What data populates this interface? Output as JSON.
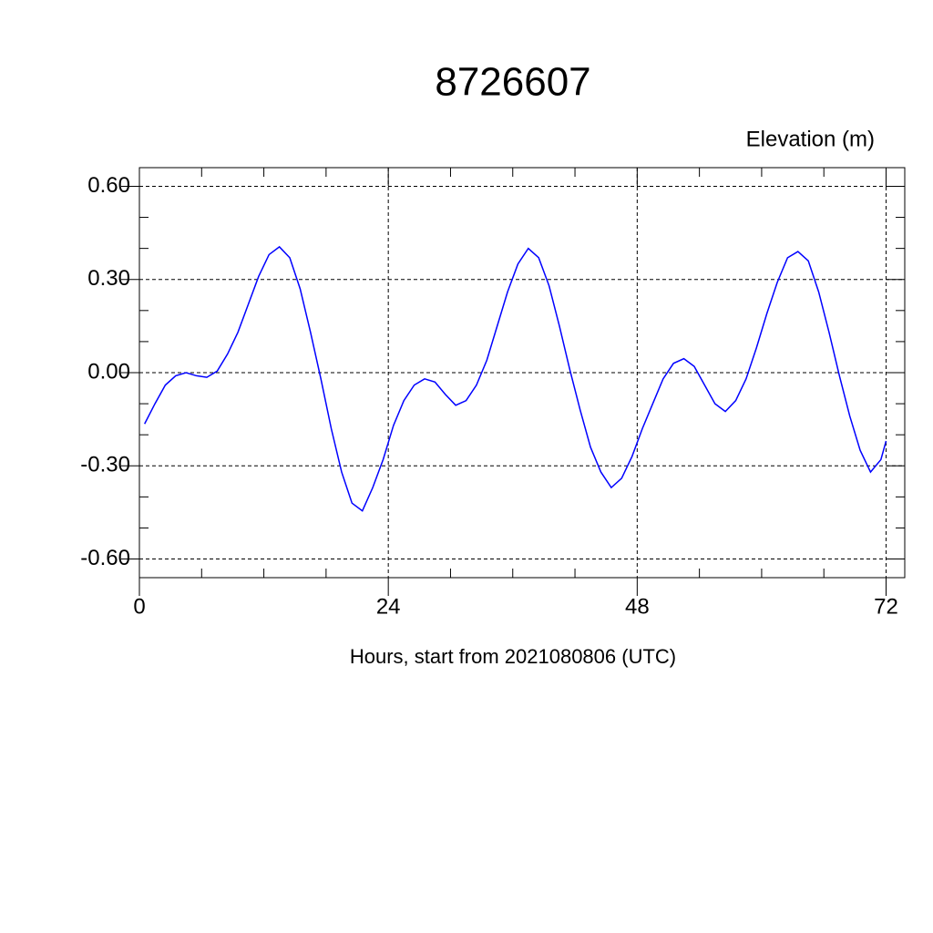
{
  "chart_data": {
    "type": "line",
    "title": "8726607",
    "ylabel": "Elevation (m)",
    "xlabel": "Hours, start from 2021080806 (UTC)",
    "x": [
      0.5,
      1.5,
      2.5,
      3.5,
      4.5,
      5.5,
      6.5,
      7.5,
      8.5,
      9.5,
      10.5,
      11.5,
      12.5,
      13.5,
      14.5,
      15.5,
      16.5,
      17.5,
      18.5,
      19.5,
      20.5,
      21.5,
      22.5,
      23.5,
      24.5,
      25.5,
      26.5,
      27.5,
      28.5,
      29.5,
      30.5,
      31.5,
      32.5,
      33.5,
      34.5,
      35.5,
      36.5,
      37.5,
      38.5,
      39.5,
      40.5,
      41.5,
      42.5,
      43.5,
      44.5,
      45.5,
      46.5,
      47.5,
      48.5,
      49.5,
      50.5,
      51.5,
      52.5,
      53.5,
      54.5,
      55.5,
      56.5,
      57.5,
      58.5,
      59.5,
      60.5,
      61.5,
      62.5,
      63.5,
      64.5,
      65.5,
      66.5,
      67.5,
      68.5,
      69.5,
      70.5,
      71.5,
      72
    ],
    "series": [
      {
        "color": "#0000ff",
        "values": [
          -0.165,
          -0.1,
          -0.04,
          -0.01,
          0.0,
          -0.01,
          -0.015,
          0.005,
          0.06,
          0.13,
          0.22,
          0.31,
          0.38,
          0.405,
          0.37,
          0.27,
          0.13,
          -0.02,
          -0.18,
          -0.32,
          -0.42,
          -0.445,
          -0.37,
          -0.28,
          -0.17,
          -0.09,
          -0.04,
          -0.02,
          -0.03,
          -0.07,
          -0.105,
          -0.09,
          -0.04,
          0.04,
          0.15,
          0.26,
          0.35,
          0.4,
          0.37,
          0.28,
          0.15,
          0.01,
          -0.12,
          -0.24,
          -0.32,
          -0.37,
          -0.34,
          -0.27,
          -0.18,
          -0.1,
          -0.02,
          0.03,
          0.045,
          0.02,
          -0.04,
          -0.1,
          -0.125,
          -0.09,
          -0.02,
          0.08,
          0.19,
          0.29,
          0.37,
          0.39,
          0.36,
          0.26,
          0.13,
          -0.01,
          -0.14,
          -0.25,
          -0.32,
          -0.28,
          -0.22
        ]
      }
    ],
    "xlim": [
      0,
      73.8
    ],
    "ylim": [
      -0.66,
      0.66
    ],
    "xticks": [
      0,
      24,
      48,
      72
    ],
    "yticks": [
      {
        "value": -0.6,
        "label": "-0.60"
      },
      {
        "value": -0.3,
        "label": "-0.30"
      },
      {
        "value": 0,
        "label": "0.00"
      },
      {
        "value": 0.3,
        "label": "0.30"
      },
      {
        "value": 0.6,
        "label": "0.60"
      }
    ],
    "xminorticks": [
      6,
      12,
      18,
      30,
      36,
      42,
      54,
      60,
      66
    ],
    "yminorticks": [
      -0.5,
      -0.4,
      -0.2,
      -0.1,
      0.1,
      0.2,
      0.4,
      0.5
    ],
    "grid": true
  }
}
